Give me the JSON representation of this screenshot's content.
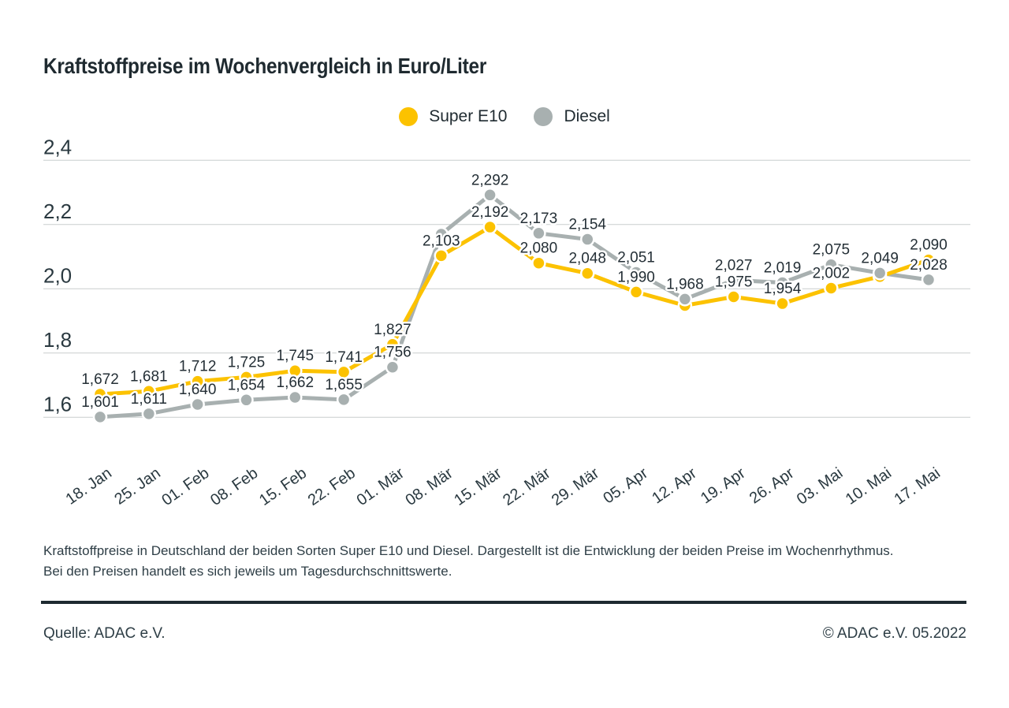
{
  "title": "Kraftstoffpreise im Wochenvergleich in Euro/Liter",
  "caption": "Kraftstoffpreise in Deutschland der beiden Sorten Super E10 und Diesel. Dargestellt ist die Entwicklung der beiden Preise im Wochenrhythmus. Bei den Preisen handelt es sich jeweils um Tagesdurchschnittswerte.",
  "source_left": "Quelle: ADAC e.V.",
  "source_right": "© ADAC e.V. 05.2022",
  "colors": {
    "super_e10": "#FCC200",
    "diesel": "#A8B0B0",
    "grid": "#c9cdce",
    "text_dark": "#1f2a30"
  },
  "chart_data": {
    "type": "line",
    "title": "Kraftstoffpreise im Wochenvergleich in Euro/Liter",
    "unit": "Euro/Liter",
    "x": [
      "18. Jan",
      "25. Jan",
      "01. Feb",
      "08. Feb",
      "15. Feb",
      "22. Feb",
      "01. Mär",
      "08. Mär",
      "15. Mär",
      "22. Mär",
      "29. Mär",
      "05. Apr",
      "12. Apr",
      "19. Apr",
      "26. Apr",
      "03. Mai",
      "10. Mai",
      "17. Mai"
    ],
    "yticks": [
      2.4,
      2.2,
      2.0,
      1.8,
      1.6
    ],
    "ytick_labels": [
      "2,4",
      "2,2",
      "2,0",
      "1,8",
      "1,6"
    ],
    "ylim": [
      1.55,
      2.45
    ],
    "grid": true,
    "legend_position": "top-center",
    "series": [
      {
        "name": "Super E10",
        "color": "#FCC200",
        "values": [
          1.672,
          1.681,
          1.712,
          1.725,
          1.745,
          1.741,
          1.827,
          2.103,
          2.192,
          2.08,
          2.048,
          1.99,
          1.948,
          1.975,
          1.954,
          2.002,
          2.038,
          2.09
        ],
        "labels": [
          "1,672",
          "1,681",
          "1,712",
          "1,725",
          "1,745",
          "1,741",
          "1,827",
          "2,103",
          "2,192",
          "2,080",
          "2,048",
          "1,990",
          null,
          "1,975",
          "1,954",
          "2,002",
          null,
          "2,090"
        ]
      },
      {
        "name": "Diesel",
        "color": "#A8B0B0",
        "values": [
          1.601,
          1.611,
          1.64,
          1.654,
          1.662,
          1.655,
          1.756,
          2.17,
          2.292,
          2.173,
          2.154,
          2.051,
          1.968,
          2.027,
          2.019,
          2.075,
          2.049,
          2.028
        ],
        "labels": [
          "1,601",
          "1,611",
          "1,640",
          "1,654",
          "1,662",
          "1,655",
          "1,756",
          null,
          "2,292",
          "2,173",
          "2,154",
          "2,051",
          "1,968",
          "2,027",
          "2,019",
          "2,075",
          "2,049",
          "2,028"
        ]
      }
    ]
  }
}
